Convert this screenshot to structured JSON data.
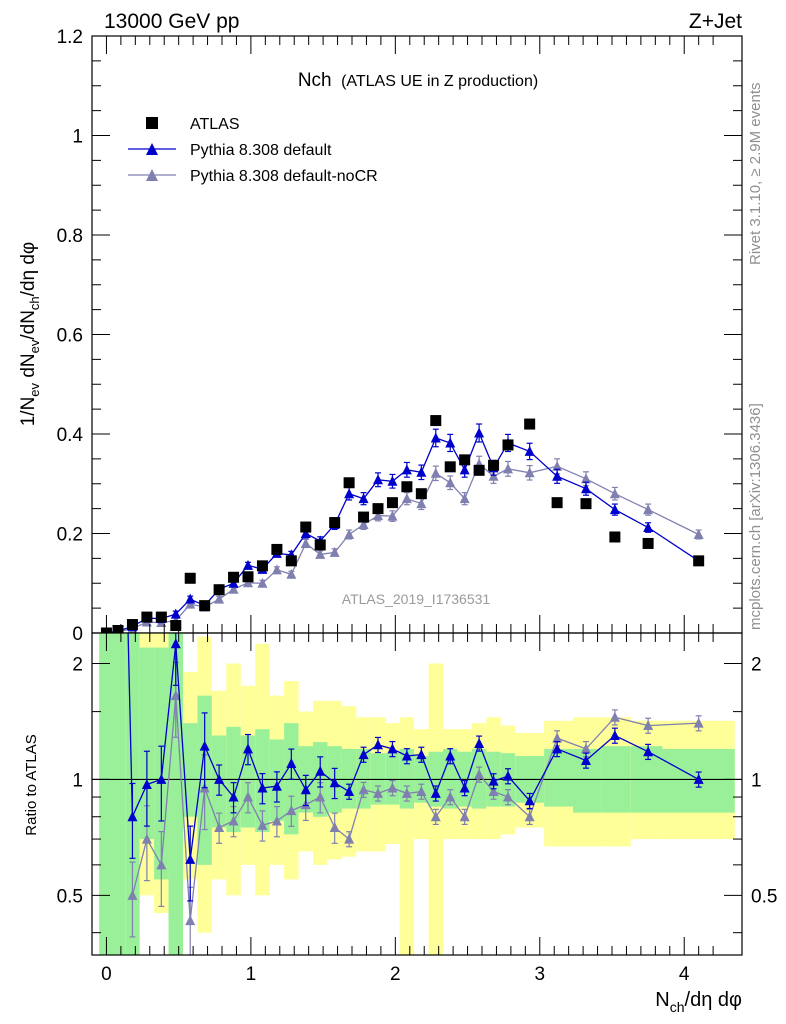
{
  "header": {
    "left": "13000 GeV pp",
    "right": "Z+Jet"
  },
  "title_main": "Nch",
  "title_sub": "(ATLAS UE in Z production)",
  "side_text_top": "Rivet 3.1.10, ≥ 2.9M events",
  "side_text_bottom": "mcplots.cern.ch [arXiv:1306.3436]",
  "watermark": "ATLAS_2019_I1736531",
  "colors": {
    "data": "#000000",
    "default": "#0000cc",
    "nocr": "#8080b0",
    "band_green": "#99f099",
    "band_yellow": "#ffff99"
  },
  "chart_data": [
    {
      "type": "scatter",
      "panel": "main",
      "ylabel": "1/N_ev dN_ev/dN_ch/dη dφ",
      "xlim": [
        -0.1,
        4.4
      ],
      "ylim": [
        0,
        1.2
      ],
      "yticks": [
        "0",
        "0.2",
        "0.4",
        "0.6",
        "0.8",
        "1",
        "1.2"
      ],
      "legend": {
        "placement": "top-left",
        "entries": [
          "ATLAS",
          "Pythia 8.308 default",
          "Pythia 8.308 default-noCR"
        ]
      },
      "series": [
        {
          "name": "ATLAS",
          "marker": "square",
          "points": [
            [
              0.0,
              0.0
            ],
            [
              0.08,
              0.005
            ],
            [
              0.18,
              0.017
            ],
            [
              0.28,
              0.032
            ],
            [
              0.38,
              0.032
            ],
            [
              0.48,
              0.015
            ],
            [
              0.58,
              0.11
            ],
            [
              0.68,
              0.055
            ],
            [
              0.78,
              0.087
            ],
            [
              0.88,
              0.112
            ],
            [
              0.98,
              0.113
            ],
            [
              1.08,
              0.135
            ],
            [
              1.18,
              0.168
            ],
            [
              1.28,
              0.145
            ],
            [
              1.38,
              0.213
            ],
            [
              1.48,
              0.177
            ],
            [
              1.58,
              0.222
            ],
            [
              1.68,
              0.302
            ],
            [
              1.78,
              0.233
            ],
            [
              1.88,
              0.25
            ],
            [
              1.98,
              0.262
            ],
            [
              2.08,
              0.294
            ],
            [
              2.18,
              0.28
            ],
            [
              2.28,
              0.427
            ],
            [
              2.38,
              0.334
            ],
            [
              2.48,
              0.348
            ],
            [
              2.58,
              0.327
            ],
            [
              2.68,
              0.337
            ],
            [
              2.78,
              0.378
            ],
            [
              2.93,
              0.42
            ],
            [
              3.12,
              0.262
            ],
            [
              3.32,
              0.26
            ],
            [
              3.52,
              0.193
            ],
            [
              3.75,
              0.18
            ],
            [
              4.1,
              0.145
            ]
          ]
        },
        {
          "name": "Pythia 8.308 default",
          "marker": "triangle",
          "points": [
            [
              0.0,
              0.0
            ],
            [
              0.08,
              0.004
            ],
            [
              0.18,
              0.013
            ],
            [
              0.28,
              0.03
            ],
            [
              0.38,
              0.029
            ],
            [
              0.48,
              0.038
            ],
            [
              0.58,
              0.068
            ],
            [
              0.68,
              0.055
            ],
            [
              0.78,
              0.088
            ],
            [
              0.88,
              0.1
            ],
            [
              0.98,
              0.136
            ],
            [
              1.08,
              0.128
            ],
            [
              1.18,
              0.16
            ],
            [
              1.28,
              0.157
            ],
            [
              1.38,
              0.2
            ],
            [
              1.48,
              0.185
            ],
            [
              1.58,
              0.218
            ],
            [
              1.68,
              0.28
            ],
            [
              1.78,
              0.27
            ],
            [
              1.88,
              0.308
            ],
            [
              1.98,
              0.305
            ],
            [
              2.08,
              0.328
            ],
            [
              2.18,
              0.323
            ],
            [
              2.28,
              0.392
            ],
            [
              2.38,
              0.382
            ],
            [
              2.48,
              0.328
            ],
            [
              2.58,
              0.402
            ],
            [
              2.68,
              0.332
            ],
            [
              2.78,
              0.382
            ],
            [
              2.93,
              0.365
            ],
            [
              3.12,
              0.315
            ],
            [
              3.32,
              0.29
            ],
            [
              3.52,
              0.248
            ],
            [
              3.75,
              0.212
            ],
            [
              4.1,
              0.145
            ]
          ]
        },
        {
          "name": "Pythia 8.308 default-noCR",
          "marker": "triangle",
          "points": [
            [
              0.0,
              0.0
            ],
            [
              0.08,
              0.002
            ],
            [
              0.18,
              0.009
            ],
            [
              0.28,
              0.022
            ],
            [
              0.38,
              0.021
            ],
            [
              0.48,
              0.025
            ],
            [
              0.58,
              0.058
            ],
            [
              0.68,
              0.052
            ],
            [
              0.78,
              0.068
            ],
            [
              0.88,
              0.088
            ],
            [
              0.98,
              0.101
            ],
            [
              1.08,
              0.1
            ],
            [
              1.18,
              0.127
            ],
            [
              1.28,
              0.118
            ],
            [
              1.38,
              0.18
            ],
            [
              1.48,
              0.158
            ],
            [
              1.58,
              0.162
            ],
            [
              1.68,
              0.198
            ],
            [
              1.78,
              0.218
            ],
            [
              1.88,
              0.236
            ],
            [
              1.98,
              0.235
            ],
            [
              2.08,
              0.27
            ],
            [
              2.18,
              0.26
            ],
            [
              2.28,
              0.321
            ],
            [
              2.38,
              0.302
            ],
            [
              2.48,
              0.27
            ],
            [
              2.58,
              0.34
            ],
            [
              2.68,
              0.315
            ],
            [
              2.78,
              0.33
            ],
            [
              2.93,
              0.322
            ],
            [
              3.12,
              0.335
            ],
            [
              3.32,
              0.31
            ],
            [
              3.52,
              0.28
            ],
            [
              3.75,
              0.248
            ],
            [
              4.1,
              0.198
            ]
          ]
        }
      ]
    },
    {
      "type": "line",
      "panel": "ratio",
      "ylabel": "Ratio to ATLAS",
      "xlabel": "N_ch/dη dφ",
      "xlim": [
        -0.1,
        4.4
      ],
      "ylim": [
        0.35,
        2.4
      ],
      "ylog": true,
      "yticks": [
        "0.5",
        "1",
        "2"
      ],
      "xticks": [
        "0",
        "1",
        "2",
        "3",
        "4"
      ],
      "series": [
        {
          "name": "Pythia 8.308 default",
          "points": [
            [
              0.18,
              0.8
            ],
            [
              0.28,
              0.97
            ],
            [
              0.38,
              1.0
            ],
            [
              0.48,
              2.25
            ],
            [
              0.58,
              0.62
            ],
            [
              0.68,
              1.22
            ],
            [
              0.78,
              1.0
            ],
            [
              0.88,
              0.9
            ],
            [
              0.98,
              1.2
            ],
            [
              1.08,
              0.95
            ],
            [
              1.18,
              0.96
            ],
            [
              1.28,
              1.1
            ],
            [
              1.38,
              0.94
            ],
            [
              1.48,
              1.05
            ],
            [
              1.58,
              0.98
            ],
            [
              1.68,
              0.93
            ],
            [
              1.78,
              1.16
            ],
            [
              1.88,
              1.23
            ],
            [
              1.98,
              1.2
            ],
            [
              2.08,
              1.15
            ],
            [
              2.18,
              1.16
            ],
            [
              2.28,
              0.92
            ],
            [
              2.38,
              1.15
            ],
            [
              2.48,
              0.95
            ],
            [
              2.58,
              1.24
            ],
            [
              2.68,
              0.99
            ],
            [
              2.78,
              1.02
            ],
            [
              2.93,
              0.88
            ],
            [
              3.12,
              1.2
            ],
            [
              3.32,
              1.12
            ],
            [
              3.52,
              1.3
            ],
            [
              3.75,
              1.18
            ],
            [
              4.1,
              1.0
            ]
          ]
        },
        {
          "name": "Pythia 8.308 default-noCR",
          "points": [
            [
              0.18,
              0.5
            ],
            [
              0.28,
              0.7
            ],
            [
              0.38,
              0.6
            ],
            [
              0.48,
              1.65
            ],
            [
              0.58,
              0.43
            ],
            [
              0.68,
              0.95
            ],
            [
              0.78,
              0.75
            ],
            [
              0.88,
              0.78
            ],
            [
              0.98,
              0.9
            ],
            [
              1.08,
              0.76
            ],
            [
              1.18,
              0.78
            ],
            [
              1.28,
              0.83
            ],
            [
              1.38,
              0.86
            ],
            [
              1.48,
              0.9
            ],
            [
              1.58,
              0.75
            ],
            [
              1.68,
              0.7
            ],
            [
              1.78,
              0.94
            ],
            [
              1.88,
              0.92
            ],
            [
              1.98,
              0.95
            ],
            [
              2.08,
              0.92
            ],
            [
              2.18,
              0.93
            ],
            [
              2.28,
              0.8
            ],
            [
              2.38,
              0.9
            ],
            [
              2.48,
              0.8
            ],
            [
              2.58,
              1.03
            ],
            [
              2.68,
              0.93
            ],
            [
              2.78,
              0.9
            ],
            [
              2.93,
              0.8
            ],
            [
              3.12,
              1.28
            ],
            [
              3.32,
              1.2
            ],
            [
              3.52,
              1.45
            ],
            [
              3.75,
              1.38
            ],
            [
              4.1,
              1.4
            ]
          ]
        }
      ],
      "uncertainty_bands": [
        [
          -0.05,
          0.13,
          0.35,
          2.4,
          0.35,
          2.4
        ],
        [
          0.13,
          0.23,
          0.35,
          2.4,
          0.35,
          2.4
        ],
        [
          0.23,
          0.33,
          0.7,
          2.2,
          0.5,
          2.4
        ],
        [
          0.33,
          0.43,
          0.55,
          2.2,
          0.45,
          2.4
        ],
        [
          0.43,
          0.53,
          0.35,
          2.4,
          0.35,
          2.4
        ],
        [
          0.53,
          0.63,
          0.8,
          1.4,
          0.55,
          1.9
        ],
        [
          0.63,
          0.73,
          0.6,
          1.65,
          0.4,
          2.35
        ],
        [
          0.73,
          0.83,
          0.75,
          1.3,
          0.55,
          1.7
        ],
        [
          0.83,
          0.93,
          0.73,
          1.37,
          0.5,
          2.0
        ],
        [
          0.93,
          1.03,
          0.75,
          1.3,
          0.6,
          1.75
        ],
        [
          1.03,
          1.13,
          0.73,
          1.35,
          0.5,
          2.25
        ],
        [
          1.13,
          1.23,
          0.78,
          1.27,
          0.6,
          1.65
        ],
        [
          1.23,
          1.33,
          0.72,
          1.4,
          0.55,
          1.8
        ],
        [
          1.33,
          1.43,
          0.82,
          1.22,
          0.65,
          1.5
        ],
        [
          1.43,
          1.53,
          0.8,
          1.25,
          0.6,
          1.6
        ],
        [
          1.53,
          1.63,
          0.82,
          1.22,
          0.62,
          1.6
        ],
        [
          1.63,
          1.73,
          0.84,
          1.2,
          0.63,
          1.55
        ],
        [
          1.73,
          1.83,
          0.84,
          1.2,
          0.65,
          1.45
        ],
        [
          1.83,
          1.93,
          0.86,
          1.17,
          0.65,
          1.45
        ],
        [
          1.93,
          2.03,
          0.86,
          1.17,
          0.68,
          1.4
        ],
        [
          2.03,
          2.13,
          0.84,
          1.2,
          0.35,
          1.45
        ],
        [
          2.13,
          2.23,
          0.87,
          1.15,
          0.7,
          1.35
        ],
        [
          2.23,
          2.33,
          0.85,
          1.18,
          0.35,
          2.0
        ],
        [
          2.33,
          2.43,
          0.84,
          1.2,
          0.7,
          1.35
        ],
        [
          2.43,
          2.53,
          0.85,
          1.18,
          0.7,
          1.35
        ],
        [
          2.53,
          2.63,
          0.84,
          1.2,
          0.7,
          1.4
        ],
        [
          2.63,
          2.73,
          0.85,
          1.18,
          0.7,
          1.45
        ],
        [
          2.73,
          2.83,
          0.85,
          1.17,
          0.72,
          1.38
        ],
        [
          2.83,
          3.03,
          0.87,
          1.15,
          0.75,
          1.32
        ],
        [
          3.03,
          3.23,
          0.85,
          1.2,
          0.67,
          1.42
        ],
        [
          3.23,
          3.43,
          0.82,
          1.2,
          0.67,
          1.45
        ],
        [
          3.43,
          3.63,
          0.82,
          1.22,
          0.67,
          1.45
        ],
        [
          3.63,
          3.85,
          0.82,
          1.22,
          0.7,
          1.42
        ],
        [
          3.85,
          4.35,
          0.82,
          1.2,
          0.7,
          1.42
        ]
      ]
    }
  ]
}
